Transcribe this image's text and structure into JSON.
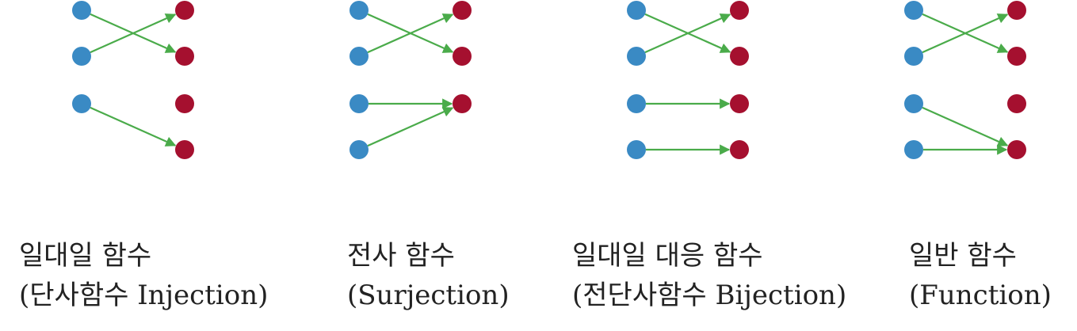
{
  "colors": {
    "domain": "#3a8ac4",
    "codomain": "#a5102f",
    "arrow": "#4aab4a"
  },
  "panels": [
    {
      "title": "일대일 함수",
      "subtitle": "(단사함수 Injection)",
      "domain_count": 3,
      "codomain_count": 4,
      "mapping": [
        [
          0,
          1
        ],
        [
          1,
          0
        ],
        [
          2,
          3
        ]
      ]
    },
    {
      "title": "전사 함수",
      "subtitle": "(Surjection)",
      "domain_count": 4,
      "codomain_count": 3,
      "mapping": [
        [
          0,
          1
        ],
        [
          1,
          0
        ],
        [
          2,
          2
        ],
        [
          3,
          2
        ]
      ]
    },
    {
      "title": "일대일 대응 함수",
      "subtitle": "(전단사함수 Bijection)",
      "domain_count": 4,
      "codomain_count": 4,
      "mapping": [
        [
          0,
          1
        ],
        [
          1,
          0
        ],
        [
          2,
          2
        ],
        [
          3,
          3
        ]
      ]
    },
    {
      "title": "일반 함수",
      "subtitle": "(Function)",
      "domain_count": 4,
      "codomain_count": 4,
      "mapping": [
        [
          0,
          1
        ],
        [
          1,
          0
        ],
        [
          2,
          3
        ],
        [
          3,
          3
        ]
      ]
    }
  ]
}
